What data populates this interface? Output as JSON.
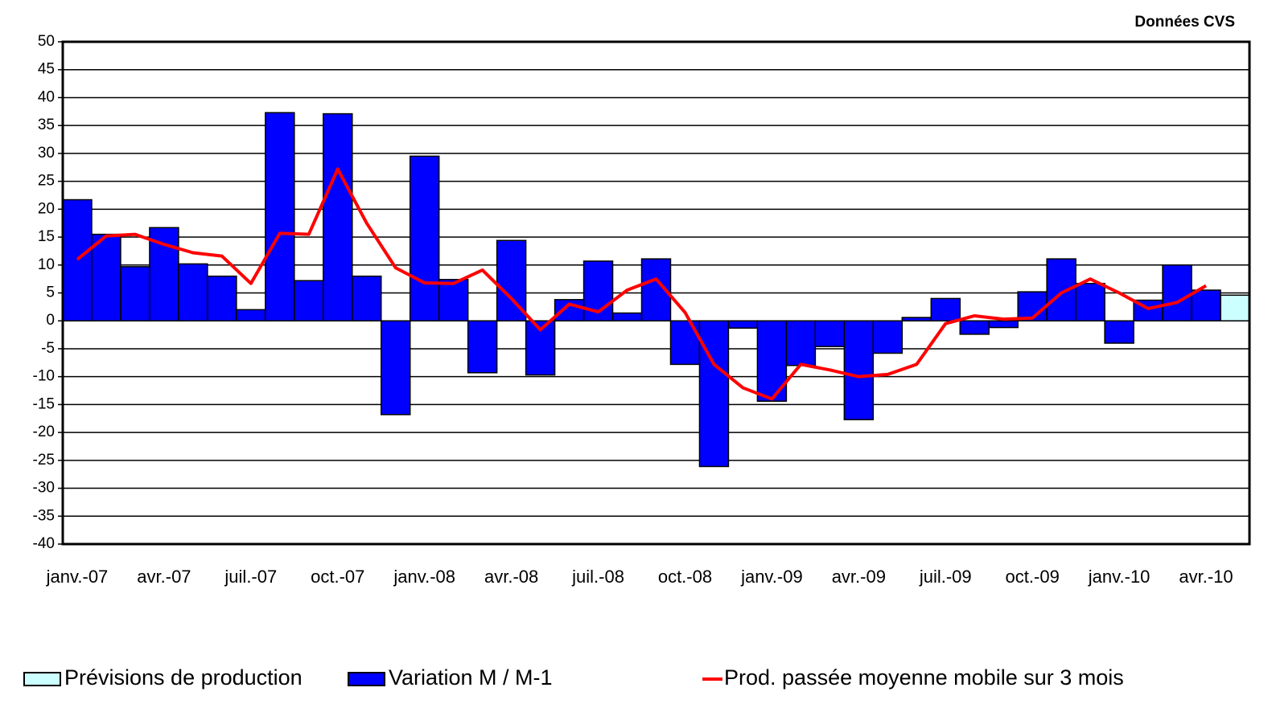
{
  "chart_data": {
    "type": "bar",
    "annotation": "Données CVS",
    "categories": [
      "janv.-07",
      null,
      null,
      "avr.-07",
      null,
      null,
      "juil.-07",
      null,
      null,
      "oct.-07",
      null,
      null,
      "janv.-08",
      null,
      null,
      "avr.-08",
      null,
      null,
      "juil.-08",
      null,
      null,
      "oct.-08",
      null,
      null,
      "janv.-09",
      null,
      null,
      "avr.-09",
      null,
      null,
      "juil.-09",
      null,
      null,
      "oct.-09",
      null,
      null,
      "janv.-10",
      null,
      null,
      "avr.-10",
      null
    ],
    "series": [
      {
        "name": "Prévisions de production",
        "type": "bar",
        "color": "#ccffff",
        "values": [
          null,
          null,
          null,
          null,
          null,
          null,
          null,
          null,
          null,
          null,
          null,
          null,
          null,
          null,
          null,
          null,
          null,
          null,
          null,
          null,
          null,
          null,
          null,
          null,
          null,
          null,
          null,
          null,
          null,
          null,
          null,
          null,
          null,
          null,
          null,
          null,
          null,
          null,
          null,
          null,
          4.6
        ]
      },
      {
        "name": "Variation M / M-1",
        "type": "bar",
        "color": "#0000ff",
        "values": [
          21.7,
          15.5,
          9.7,
          16.7,
          10.2,
          8,
          2,
          37.3,
          7.2,
          37.1,
          8,
          -16.8,
          29.5,
          7.4,
          -9.3,
          14.4,
          -9.7,
          3.8,
          10.7,
          1.4,
          11.1,
          -7.8,
          -26.1,
          -1.3,
          -14.4,
          -8,
          -4.6,
          -17.7,
          -5.8,
          0.6,
          4,
          -2.4,
          -1.2,
          5.2,
          11.1,
          6.7,
          -4,
          3.7,
          10,
          5.5,
          null
        ]
      },
      {
        "name": "Prod. passée moyenne mobile sur 3 mois",
        "type": "line",
        "color": "#ff0000",
        "values": [
          11,
          15.2,
          15.5,
          13.7,
          12.2,
          11.6,
          6.7,
          15.7,
          15.5,
          27.2,
          17.5,
          9.5,
          6.8,
          6.7,
          9.1,
          4,
          -1.6,
          3,
          1.6,
          5.5,
          7.5,
          1.5,
          -7.8,
          -12,
          -14,
          -7.8,
          -8.8,
          -10,
          -9.6,
          -7.8,
          -0.5,
          0.9,
          0.3,
          0.5,
          5,
          7.5,
          5,
          2.2,
          3.3,
          6.3,
          null
        ]
      }
    ],
    "ylim": [
      -40,
      50
    ],
    "yticks": [
      -40,
      -35,
      -30,
      -25,
      -20,
      -15,
      -10,
      -5,
      0,
      5,
      10,
      15,
      20,
      25,
      30,
      35,
      40,
      45,
      50
    ],
    "grid": true,
    "legend": "bottom"
  }
}
